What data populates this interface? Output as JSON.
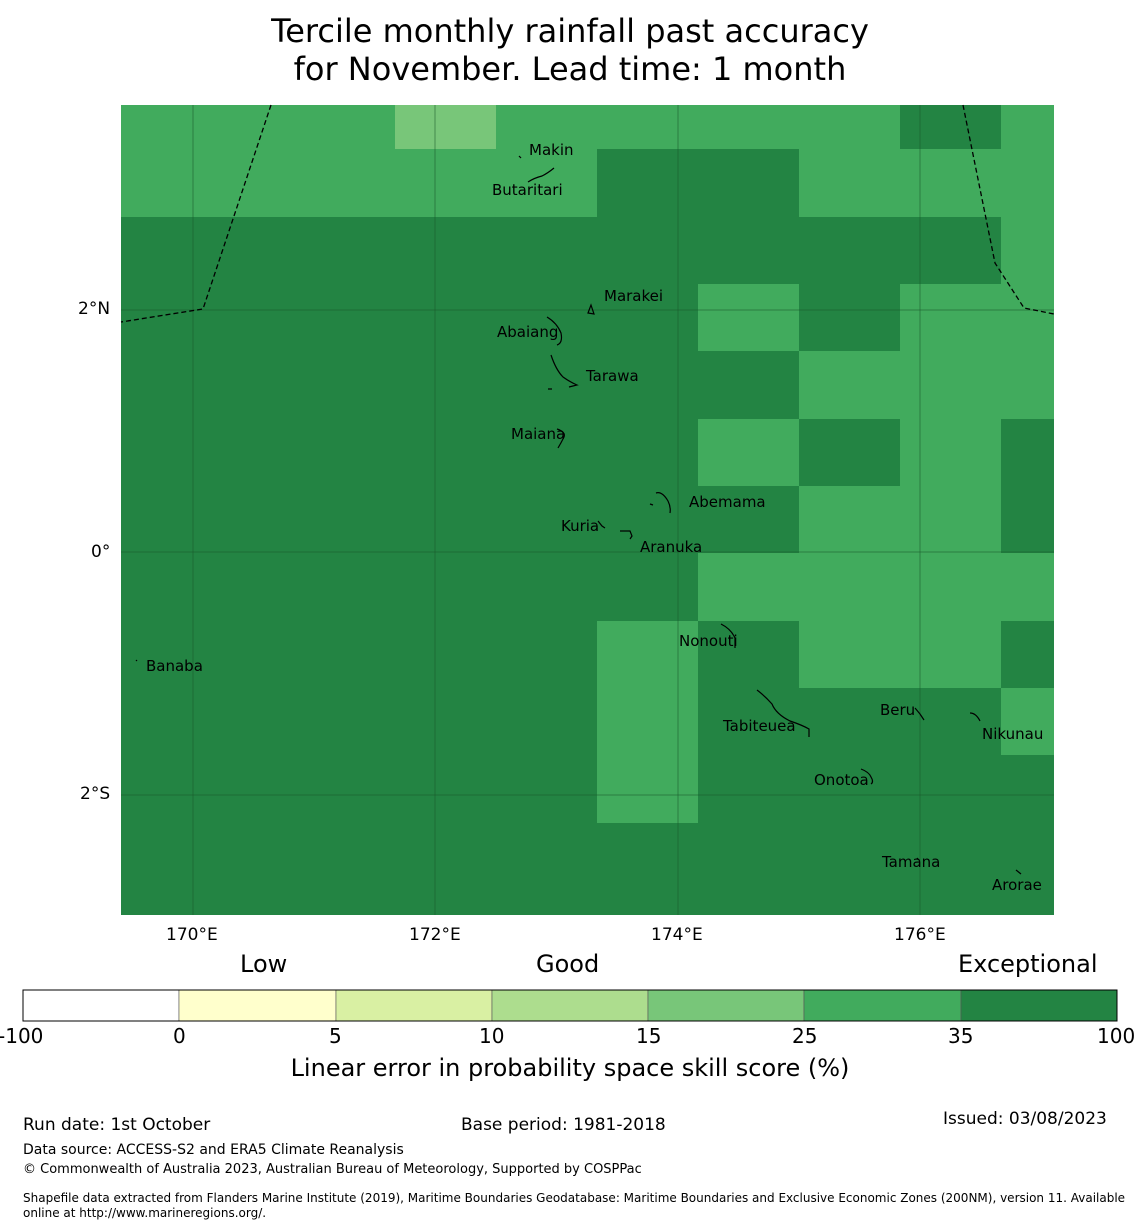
{
  "title": {
    "line1": "Tercile monthly rainfall past accuracy",
    "line2": "for November. Lead time: 1 month"
  },
  "map": {
    "lon_ticks": [
      "170°E",
      "172°E",
      "174°E",
      "176°E"
    ],
    "lat_ticks": [
      "2°N",
      "0°",
      "2°S"
    ],
    "islands": [
      {
        "name": "Makin"
      },
      {
        "name": "Butaritari"
      },
      {
        "name": "Marakei"
      },
      {
        "name": "Abaiang"
      },
      {
        "name": "Tarawa"
      },
      {
        "name": "Maiana"
      },
      {
        "name": "Abemama"
      },
      {
        "name": "Kuria"
      },
      {
        "name": "Aranuka"
      },
      {
        "name": "Banaba"
      },
      {
        "name": "Nonouti"
      },
      {
        "name": "Beru"
      },
      {
        "name": "Tabiteuea"
      },
      {
        "name": "Nikunau"
      },
      {
        "name": "Onotoa"
      },
      {
        "name": "Tamana"
      },
      {
        "name": "Arorae"
      }
    ],
    "grid_skill_classes_rows": [
      [
        6,
        6,
        6,
        5,
        6,
        6,
        6,
        6,
        7,
        6
      ],
      [
        6,
        6,
        6,
        6,
        6,
        7,
        7,
        6,
        6,
        6
      ],
      [
        7,
        7,
        7,
        7,
        7,
        7,
        7,
        7,
        7,
        6
      ],
      [
        7,
        7,
        7,
        7,
        7,
        7,
        6,
        7,
        6,
        6
      ],
      [
        7,
        7,
        7,
        7,
        7,
        7,
        7,
        6,
        6,
        6
      ],
      [
        7,
        7,
        7,
        7,
        7,
        7,
        6,
        7,
        6,
        7
      ],
      [
        7,
        7,
        7,
        7,
        7,
        7,
        7,
        6,
        6,
        7
      ],
      [
        7,
        7,
        7,
        7,
        7,
        7,
        6,
        6,
        6,
        6
      ],
      [
        7,
        7,
        7,
        7,
        7,
        6,
        7,
        6,
        6,
        7
      ],
      [
        7,
        7,
        7,
        7,
        7,
        6,
        7,
        7,
        7,
        6
      ],
      [
        7,
        7,
        7,
        7,
        7,
        6,
        7,
        7,
        7,
        7
      ],
      [
        7,
        7,
        7,
        7,
        7,
        7,
        7,
        7,
        7,
        7
      ]
    ]
  },
  "colorbar": {
    "category_labels": [
      "Low",
      "Good",
      "Exceptional"
    ],
    "ticks": [
      "-100",
      "0",
      "5",
      "10",
      "15",
      "25",
      "35",
      "100"
    ],
    "colors": [
      "#ffffff",
      "#ffffcc",
      "#d9f0a3",
      "#addd8e",
      "#78c679",
      "#41ab5d",
      "#238443"
    ],
    "label": "Linear error in probability space skill score (%)"
  },
  "footer": {
    "run_date": "Run date: 1st October",
    "base_period": "Base period: 1981-2018",
    "issued": "Issued: 03/08/2023",
    "data_source": "Data source: ACCESS-S2 and ERA5 Climate Reanalysis",
    "copyright": "© Commonwealth of Australia 2023, Australian Bureau of Meteorology, Supported by COSPPac",
    "shapefile_line1": "Shapefile data extracted from Flanders Marine Institute (2019), Maritime Boundaries Geodatabase: Maritime Boundaries and Exclusive Economic Zones (200NM), version 11. Available",
    "shapefile_line2": "online at http://www.marineregions.org/."
  }
}
